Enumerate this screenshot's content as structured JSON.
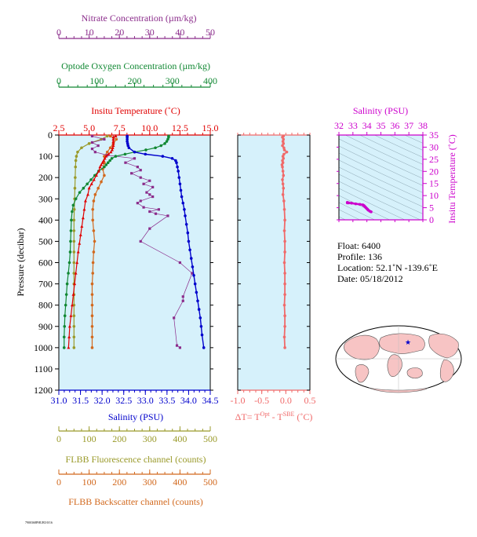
{
  "figure": {
    "float_info": {
      "float": "Float:  6400",
      "profile": "Profile:  136",
      "location": "Location:  52.1˚N  -139.6˚E",
      "date": "Date:  05/18/2012"
    },
    "footer_code": "7900368PHUB5/0/16",
    "colors": {
      "nitrate": "#8b2c8b",
      "oxygen": "#118833",
      "temperature": "#e00000",
      "salinity": "#0000cc",
      "fluorescence": "#9a9a2a",
      "backscatter": "#d2691e",
      "delta_t": "#f06a6a",
      "ts_salinity": "#cc00cc",
      "panel_bg": "#d6f1fb",
      "map_ocean": "#ffffff",
      "map_land": "#f7c4c4"
    }
  },
  "chart_data": [
    {
      "type": "line",
      "title": "",
      "ylabel": "Pressure (decibar)",
      "ylim": [
        1200,
        0
      ],
      "yticks": [
        "0",
        "100",
        "200",
        "300",
        "400",
        "500",
        "600",
        "700",
        "800",
        "900",
        "1000",
        "1100",
        "1200"
      ],
      "axes": {
        "nitrate": {
          "label": "Nitrate Concentration (µm/kg)",
          "range": [
            0,
            50
          ],
          "ticks": [
            "0",
            "10",
            "20",
            "30",
            "40",
            "50"
          ]
        },
        "oxygen": {
          "label": "Optode Oxygen Concentration (µm/kg)",
          "range": [
            0,
            400
          ],
          "ticks": [
            "0",
            "100",
            "200",
            "300",
            "400"
          ]
        },
        "temperature": {
          "label": "Insitu Temperature (˚C)",
          "range": [
            2.5,
            15
          ],
          "ticks": [
            "2.5",
            "5.0",
            "7.5",
            "10.0",
            "12.5",
            "15.0"
          ]
        },
        "salinity": {
          "label": "Salinity (PSU)",
          "range": [
            31.0,
            34.5
          ],
          "ticks": [
            "31.0",
            "31.5",
            "32.0",
            "32.5",
            "33.0",
            "33.5",
            "34.0",
            "34.5"
          ]
        },
        "fluorescence": {
          "label": "FLBB Fluorescence channel (counts)",
          "range": [
            0,
            500
          ],
          "ticks": [
            "0",
            "100",
            "200",
            "300",
            "400",
            "500"
          ]
        },
        "backscatter": {
          "label": "FLBB Backscatter channel (counts)",
          "range": [
            0,
            500
          ],
          "ticks": [
            "0",
            "100",
            "200",
            "300",
            "400",
            "500"
          ]
        }
      },
      "series": [
        {
          "key": "salinity",
          "name": "Salinity (PSU)",
          "p": [
            5,
            10,
            20,
            30,
            40,
            50,
            60,
            80,
            90,
            100,
            110,
            120,
            130,
            150,
            170,
            200,
            230,
            260,
            290,
            320,
            350,
            380,
            420,
            460,
            500,
            540,
            580,
            620,
            660,
            700,
            740,
            780,
            820,
            860,
            900,
            940,
            1000
          ],
          "v": [
            32.58,
            32.58,
            32.58,
            32.58,
            32.59,
            32.6,
            32.62,
            32.75,
            33.0,
            33.4,
            33.62,
            33.7,
            33.72,
            33.74,
            33.76,
            33.78,
            33.8,
            33.82,
            33.84,
            33.87,
            33.9,
            33.92,
            33.95,
            33.98,
            34.0,
            34.03,
            34.06,
            34.09,
            34.12,
            34.15,
            34.18,
            34.21,
            34.24,
            34.27,
            34.29,
            34.31,
            34.35
          ]
        },
        {
          "key": "temperature",
          "name": "Insitu Temperature (˚C)",
          "p": [
            5,
            10,
            20,
            30,
            40,
            50,
            60,
            70,
            80,
            90,
            100,
            110,
            120,
            130,
            140,
            150,
            170,
            190,
            210,
            230,
            250,
            280,
            310,
            350,
            390,
            430,
            470,
            510,
            550,
            600,
            650,
            700,
            750,
            800,
            850,
            900,
            950,
            1000
          ],
          "v": [
            7.2,
            7.0,
            7.0,
            7.0,
            7.0,
            7.0,
            6.95,
            6.9,
            6.8,
            6.6,
            6.4,
            6.3,
            6.2,
            6.1,
            6.0,
            5.9,
            5.8,
            5.6,
            5.4,
            5.2,
            5.0,
            4.9,
            4.7,
            4.6,
            4.5,
            4.4,
            4.3,
            4.2,
            4.1,
            4.0,
            3.9,
            3.8,
            3.7,
            3.6,
            3.5,
            3.4,
            3.35,
            3.3
          ]
        },
        {
          "key": "oxygen",
          "name": "Optode Oxygen Concentration (µm/kg)",
          "p": [
            5,
            10,
            20,
            30,
            40,
            50,
            60,
            70,
            80,
            90,
            100,
            110,
            120,
            130,
            140,
            150,
            170,
            190,
            210,
            230,
            250,
            270,
            300,
            330,
            360,
            400,
            450,
            500,
            550,
            600,
            650,
            700,
            750,
            800,
            850,
            900,
            950,
            1000
          ],
          "v": [
            290,
            290,
            288,
            285,
            280,
            270,
            255,
            230,
            200,
            175,
            150,
            140,
            135,
            130,
            125,
            120,
            105,
            95,
            85,
            75,
            65,
            55,
            45,
            38,
            35,
            33,
            32,
            31,
            30,
            28,
            25,
            22,
            20,
            18,
            16,
            15,
            14,
            14
          ]
        },
        {
          "key": "nitrate",
          "name": "Nitrate Concentration (µm/kg)",
          "p": [
            5,
            20,
            35,
            50,
            65,
            80,
            95,
            110,
            130,
            150,
            165,
            180,
            200,
            215,
            230,
            245,
            270,
            280,
            290,
            310,
            320,
            340,
            350,
            360,
            370,
            380,
            440,
            500,
            600,
            650,
            760,
            780,
            860,
            990,
            1000
          ],
          "v": [
            11,
            15,
            11,
            13,
            11,
            12,
            16,
            25,
            22,
            26,
            27,
            24,
            27,
            30,
            28,
            31,
            29,
            30,
            31,
            27,
            26,
            28,
            33,
            30,
            32,
            36,
            30,
            27,
            40,
            44,
            41,
            41,
            38,
            39,
            40
          ]
        },
        {
          "key": "fluorescence",
          "name": "FLBB Fluorescence channel (counts)",
          "p": [
            5,
            20,
            40,
            60,
            80,
            100,
            120,
            150,
            200,
            250,
            300,
            350,
            400,
            450,
            500,
            550,
            600,
            650,
            700,
            750,
            800,
            850,
            900,
            950,
            1000
          ],
          "v": [
            160,
            140,
            100,
            75,
            62,
            58,
            56,
            55,
            54,
            53,
            52,
            51,
            50,
            50,
            50,
            50,
            50,
            50,
            50,
            50,
            50,
            50,
            50,
            50,
            50
          ]
        },
        {
          "key": "backscatter",
          "name": "FLBB Backscatter channel (counts)",
          "p": [
            5,
            20,
            40,
            60,
            80,
            100,
            130,
            160,
            190,
            220,
            250,
            280,
            310,
            350,
            400,
            450,
            500,
            550,
            600,
            650,
            700,
            750,
            800,
            850,
            900,
            950,
            1000
          ],
          "v": [
            170,
            190,
            180,
            170,
            160,
            150,
            150,
            145,
            150,
            140,
            130,
            120,
            115,
            112,
            112,
            115,
            118,
            115,
            113,
            112,
            110,
            110,
            110,
            110,
            110,
            110,
            110
          ]
        }
      ]
    },
    {
      "type": "line",
      "xlabel": "ΔT= T",
      "xlabel_sup1": "Opt",
      "xlabel_mid": " - T",
      "xlabel_sup2": "SBE",
      "xlabel_tail": " (˚C)",
      "xlim": [
        -1.0,
        0.5
      ],
      "xticks": [
        "-1.0",
        "-0.5",
        "0.0",
        "0.5"
      ],
      "ylim": [
        1200,
        0
      ],
      "series": [
        {
          "name": "ΔT",
          "p": [
            5,
            10,
            20,
            30,
            40,
            50,
            60,
            70,
            80,
            90,
            100,
            110,
            120,
            130,
            140,
            150,
            170,
            190,
            210,
            230,
            250,
            280,
            310,
            350,
            400,
            450,
            500,
            550,
            600,
            650,
            700,
            750,
            800,
            850,
            900,
            950,
            1000
          ],
          "v": [
            -0.05,
            -0.07,
            -0.05,
            -0.06,
            -0.05,
            -0.07,
            -0.04,
            -0.03,
            0.02,
            -0.04,
            -0.06,
            -0.05,
            -0.07,
            -0.06,
            -0.08,
            -0.07,
            -0.06,
            -0.05,
            -0.07,
            -0.06,
            -0.05,
            -0.06,
            -0.04,
            -0.03,
            -0.02,
            -0.03,
            -0.02,
            -0.02,
            -0.03,
            -0.02,
            -0.02,
            -0.02,
            -0.03,
            -0.02,
            -0.02,
            -0.03,
            -0.02
          ]
        }
      ]
    },
    {
      "type": "scatter",
      "title": "Salinity (PSU)",
      "xlim": [
        32,
        38
      ],
      "xticks": [
        "32",
        "33",
        "34",
        "35",
        "36",
        "37",
        "38"
      ],
      "ylim": [
        0,
        35
      ],
      "yticks": [
        "0",
        "5",
        "10",
        "15",
        "20",
        "25",
        "30",
        "35"
      ],
      "ylabel": "Insitu Temperature (˚C)",
      "series": [
        {
          "name": "T-S",
          "s": [
            32.6,
            32.6,
            32.7,
            32.9,
            33.2,
            33.5,
            33.7,
            33.75,
            33.8,
            33.85,
            33.9,
            33.95,
            34.0,
            34.05,
            34.1,
            34.2,
            34.3
          ],
          "t": [
            7.2,
            7.0,
            7.0,
            6.9,
            6.6,
            6.4,
            6.2,
            6.0,
            5.8,
            5.5,
            5.2,
            4.9,
            4.6,
            4.3,
            4.0,
            3.6,
            3.3
          ]
        }
      ]
    }
  ]
}
